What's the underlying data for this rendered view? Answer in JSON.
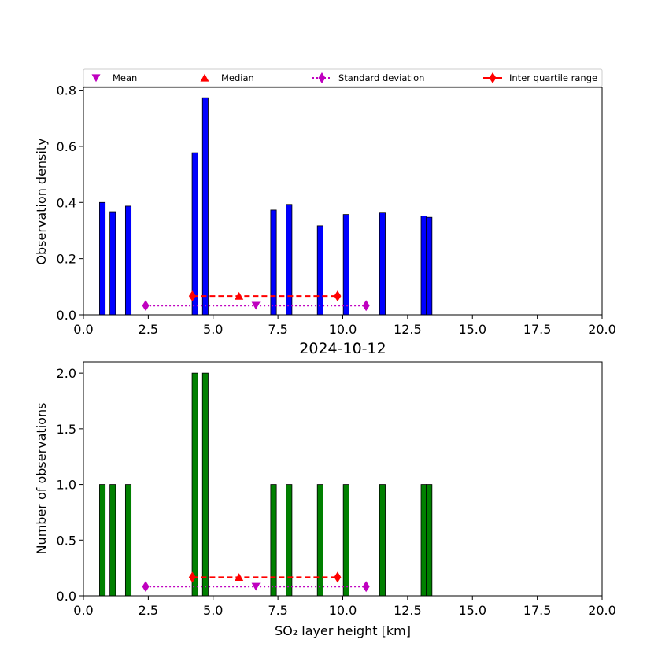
{
  "chart_data": [
    {
      "type": "bar",
      "title": "",
      "xlabel": "",
      "ylabel": "Observation density",
      "xlim": [
        0,
        20
      ],
      "ylim": [
        0,
        0.81
      ],
      "xticks": [
        "0.0",
        "2.5",
        "5.0",
        "7.5",
        "10.0",
        "12.5",
        "15.0",
        "17.5",
        "20.0"
      ],
      "yticks": [
        "0.0",
        "0.2",
        "0.4",
        "0.6",
        "0.8"
      ],
      "bar_color": "#0000ff",
      "bar_width_km": 0.22,
      "bars": [
        {
          "x": 0.73,
          "value": 0.4
        },
        {
          "x": 1.13,
          "value": 0.367
        },
        {
          "x": 1.73,
          "value": 0.387
        },
        {
          "x": 4.3,
          "value": 0.577
        },
        {
          "x": 4.7,
          "value": 0.773
        },
        {
          "x": 7.33,
          "value": 0.373
        },
        {
          "x": 7.93,
          "value": 0.393
        },
        {
          "x": 9.13,
          "value": 0.317
        },
        {
          "x": 10.13,
          "value": 0.357
        },
        {
          "x": 11.53,
          "value": 0.365
        },
        {
          "x": 13.13,
          "value": 0.352
        },
        {
          "x": 13.33,
          "value": 0.347
        }
      ],
      "stats": {
        "mean": {
          "x": 6.65,
          "y": 0.033
        },
        "median": {
          "x": 6.0,
          "y": 0.067
        },
        "std": {
          "x": [
            2.4,
            10.9
          ],
          "y": 0.033
        },
        "iqr": {
          "x": [
            4.2,
            9.8
          ],
          "y": 0.067
        }
      },
      "legend": {
        "placement": "top",
        "entries": [
          "Mean",
          "Median",
          "Standard deviation",
          "Inter quartile range"
        ]
      }
    },
    {
      "type": "bar",
      "title": "2024-10-12",
      "xlabel": "SO₂ layer height [km]",
      "ylabel": "Number of observations",
      "xlim": [
        0,
        20
      ],
      "ylim": [
        0,
        2.1
      ],
      "xticks": [
        "0.0",
        "2.5",
        "5.0",
        "7.5",
        "10.0",
        "12.5",
        "15.0",
        "17.5",
        "20.0"
      ],
      "yticks": [
        "0.0",
        "0.5",
        "1.0",
        "1.5",
        "2.0"
      ],
      "bar_color": "#008000",
      "bar_width_km": 0.22,
      "bars": [
        {
          "x": 0.73,
          "value": 1
        },
        {
          "x": 1.13,
          "value": 1
        },
        {
          "x": 1.73,
          "value": 1
        },
        {
          "x": 4.3,
          "value": 2
        },
        {
          "x": 4.7,
          "value": 2
        },
        {
          "x": 7.33,
          "value": 1
        },
        {
          "x": 7.93,
          "value": 1
        },
        {
          "x": 9.13,
          "value": 1
        },
        {
          "x": 10.13,
          "value": 1
        },
        {
          "x": 11.53,
          "value": 1
        },
        {
          "x": 13.13,
          "value": 1
        },
        {
          "x": 13.33,
          "value": 1
        }
      ],
      "stats": {
        "mean": {
          "x": 6.65,
          "y": 0.083
        },
        "median": {
          "x": 6.0,
          "y": 0.167
        },
        "std": {
          "x": [
            2.4,
            10.9
          ],
          "y": 0.083
        },
        "iqr": {
          "x": [
            4.2,
            9.8
          ],
          "y": 0.167
        }
      }
    }
  ],
  "colors": {
    "mean": "#bf00bf",
    "median": "#ff0000",
    "std": "#bf00bf",
    "iqr": "#ff0000"
  }
}
